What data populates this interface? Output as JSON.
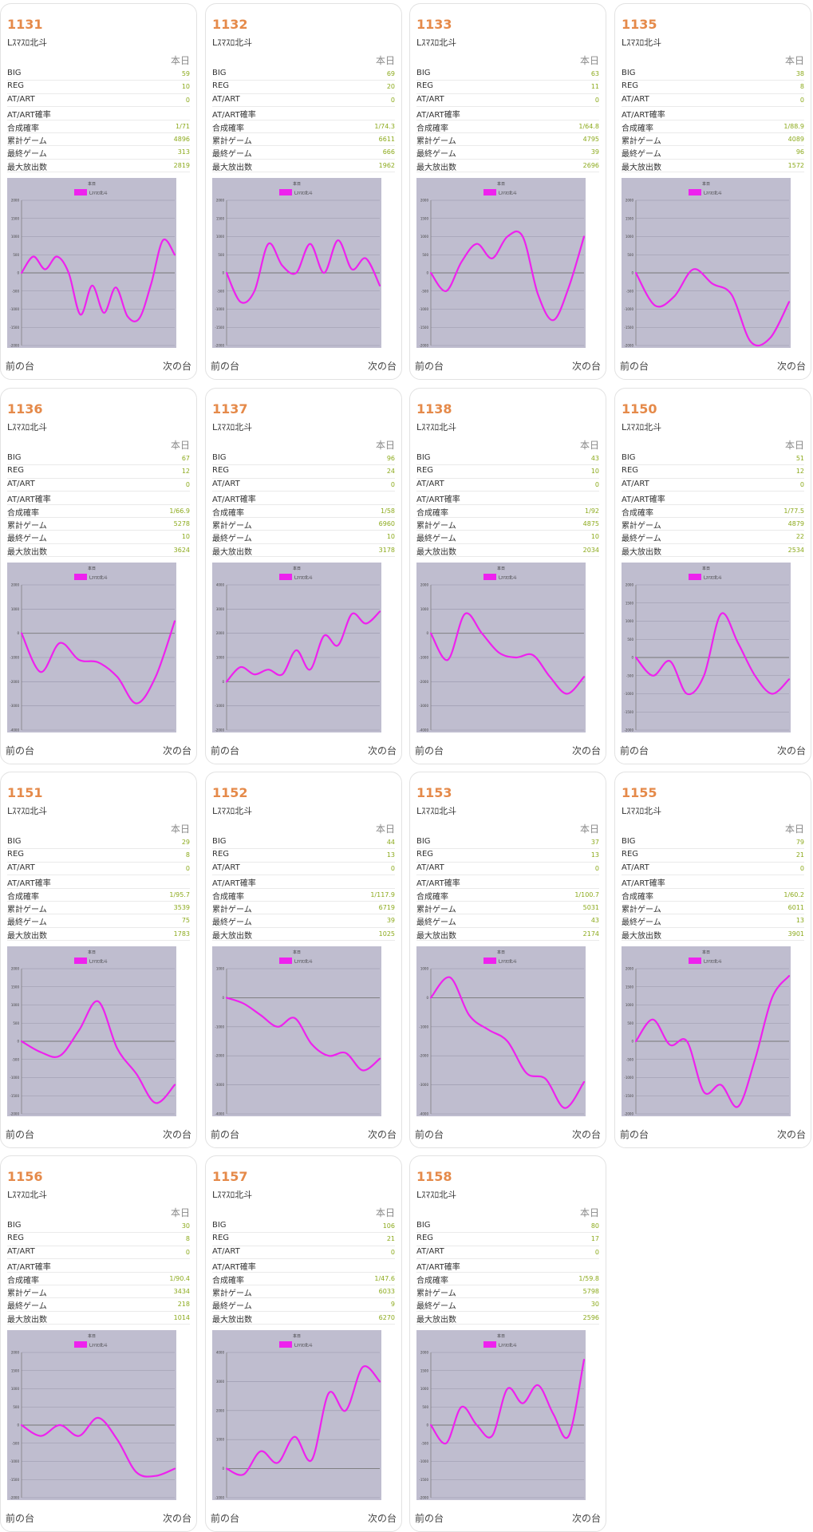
{
  "labels": {
    "today": "本日",
    "prev": "前の台",
    "next": "次の台",
    "rows": [
      "BIG",
      "REG",
      "AT/ART",
      "AT/ART確率",
      "合成確率",
      "累計ゲーム",
      "最終ゲーム",
      "最大放出数"
    ],
    "legend_title": "本日",
    "legend_series": "Lｽﾏｽﾛ北斗"
  },
  "colors": {
    "accent": "#e58a4a",
    "value": "#8caa1c",
    "line": "#ee22ee",
    "plot_bg": "#bfbdcf"
  },
  "machines": [
    {
      "num": "1131",
      "name": "Lｽﾏｽﾛ北斗",
      "stats": [
        "59",
        "10",
        "0",
        "",
        "1/71",
        "4896",
        "313",
        "2819"
      ]
    },
    {
      "num": "1132",
      "name": "Lｽﾏｽﾛ北斗",
      "stats": [
        "69",
        "20",
        "0",
        "",
        "1/74.3",
        "6611",
        "666",
        "1962"
      ]
    },
    {
      "num": "1133",
      "name": "Lｽﾏｽﾛ北斗",
      "stats": [
        "63",
        "11",
        "0",
        "",
        "1/64.8",
        "4795",
        "39",
        "2696"
      ]
    },
    {
      "num": "1135",
      "name": "Lｽﾏｽﾛ北斗",
      "stats": [
        "38",
        "8",
        "0",
        "",
        "1/88.9",
        "4089",
        "96",
        "1572"
      ]
    },
    {
      "num": "1136",
      "name": "Lｽﾏｽﾛ北斗",
      "stats": [
        "67",
        "12",
        "0",
        "",
        "1/66.9",
        "5278",
        "10",
        "3624"
      ]
    },
    {
      "num": "1137",
      "name": "Lｽﾏｽﾛ北斗",
      "stats": [
        "96",
        "24",
        "0",
        "",
        "1/58",
        "6960",
        "10",
        "3178"
      ]
    },
    {
      "num": "1138",
      "name": "Lｽﾏｽﾛ北斗",
      "stats": [
        "43",
        "10",
        "0",
        "",
        "1/92",
        "4875",
        "10",
        "2034"
      ]
    },
    {
      "num": "1150",
      "name": "Lｽﾏｽﾛ北斗",
      "stats": [
        "51",
        "12",
        "0",
        "",
        "1/77.5",
        "4879",
        "22",
        "2534"
      ]
    },
    {
      "num": "1151",
      "name": "Lｽﾏｽﾛ北斗",
      "stats": [
        "29",
        "8",
        "0",
        "",
        "1/95.7",
        "3539",
        "75",
        "1783"
      ]
    },
    {
      "num": "1152",
      "name": "Lｽﾏｽﾛ北斗",
      "stats": [
        "44",
        "13",
        "0",
        "",
        "1/117.9",
        "6719",
        "39",
        "1025"
      ]
    },
    {
      "num": "1153",
      "name": "Lｽﾏｽﾛ北斗",
      "stats": [
        "37",
        "13",
        "0",
        "",
        "1/100.7",
        "5031",
        "43",
        "2174"
      ]
    },
    {
      "num": "1155",
      "name": "Lｽﾏｽﾛ北斗",
      "stats": [
        "79",
        "21",
        "0",
        "",
        "1/60.2",
        "6011",
        "13",
        "3901"
      ]
    },
    {
      "num": "1156",
      "name": "Lｽﾏｽﾛ北斗",
      "stats": [
        "30",
        "8",
        "0",
        "",
        "1/90.4",
        "3434",
        "218",
        "1014"
      ]
    },
    {
      "num": "1157",
      "name": "Lｽﾏｽﾛ北斗",
      "stats": [
        "106",
        "21",
        "0",
        "",
        "1/47.6",
        "6033",
        "9",
        "6270"
      ]
    },
    {
      "num": "1158",
      "name": "Lｽﾏｽﾛ北斗",
      "stats": [
        "80",
        "17",
        "0",
        "",
        "1/59.8",
        "5798",
        "30",
        "2596"
      ]
    }
  ],
  "chart_data": [
    {
      "type": "line",
      "ylim": [
        -2000,
        2000
      ],
      "yticks": [
        2000,
        1500,
        1000,
        500,
        0,
        -500,
        -1000,
        -1500,
        -2000
      ],
      "series": [
        {
          "name": "Lｽﾏｽﾛ北斗",
          "values": [
            0,
            450,
            100,
            450,
            0,
            -1150,
            -350,
            -1100,
            -400,
            -1200,
            -1250,
            -300,
            900,
            500
          ]
        }
      ]
    },
    {
      "type": "line",
      "ylim": [
        -2000,
        2000
      ],
      "yticks": [
        2000,
        1500,
        1000,
        500,
        0,
        -500,
        -1000,
        -1500,
        -2000
      ],
      "series": [
        {
          "name": "Lｽﾏｽﾛ北斗",
          "values": [
            0,
            -800,
            -500,
            800,
            200,
            0,
            800,
            0,
            900,
            100,
            400,
            -350
          ]
        }
      ]
    },
    {
      "type": "line",
      "ylim": [
        -2000,
        2000
      ],
      "yticks": [
        2000,
        1500,
        1000,
        500,
        0,
        -500,
        -1000,
        -1500,
        -2000
      ],
      "series": [
        {
          "name": "Lｽﾏｽﾛ北斗",
          "values": [
            0,
            -500,
            300,
            800,
            400,
            1000,
            1000,
            -600,
            -1300,
            -400,
            1000
          ]
        }
      ]
    },
    {
      "type": "line",
      "ylim": [
        -2000,
        2000
      ],
      "yticks": [
        2000,
        1500,
        1000,
        500,
        0,
        -500,
        -1000,
        -1500,
        -2000
      ],
      "series": [
        {
          "name": "Lｽﾏｽﾛ北斗",
          "values": [
            0,
            -900,
            -650,
            100,
            -300,
            -600,
            -1900,
            -1800,
            -800
          ]
        }
      ]
    },
    {
      "type": "line",
      "ylim": [
        -4000,
        2000
      ],
      "yticks": [
        2000,
        1000,
        0,
        -1000,
        -2000,
        -3000,
        -4000
      ],
      "series": [
        {
          "name": "Lｽﾏｽﾛ北斗",
          "values": [
            0,
            -1600,
            -400,
            -1100,
            -1200,
            -1800,
            -2900,
            -1800,
            500
          ]
        }
      ]
    },
    {
      "type": "line",
      "ylim": [
        -2000,
        4000
      ],
      "yticks": [
        4000,
        3000,
        2000,
        1000,
        0,
        -1000,
        -2000
      ],
      "series": [
        {
          "name": "Lｽﾏｽﾛ北斗",
          "values": [
            0,
            600,
            300,
            500,
            300,
            1300,
            500,
            1900,
            1500,
            2800,
            2400,
            2900
          ]
        }
      ]
    },
    {
      "type": "line",
      "ylim": [
        -4000,
        2000
      ],
      "yticks": [
        2000,
        1000,
        0,
        -1000,
        -2000,
        -3000,
        -4000
      ],
      "series": [
        {
          "name": "Lｽﾏｽﾛ北斗",
          "values": [
            0,
            -1100,
            800,
            0,
            -800,
            -1000,
            -900,
            -1800,
            -2500,
            -1800
          ]
        }
      ]
    },
    {
      "type": "line",
      "ylim": [
        -2000,
        2000
      ],
      "yticks": [
        2000,
        1500,
        1000,
        500,
        0,
        -500,
        -1000,
        -1500,
        -2000
      ],
      "series": [
        {
          "name": "Lｽﾏｽﾛ北斗",
          "values": [
            0,
            -500,
            -100,
            -1000,
            -500,
            1200,
            400,
            -500,
            -1000,
            -600
          ]
        }
      ]
    },
    {
      "type": "line",
      "ylim": [
        -2000,
        2000
      ],
      "yticks": [
        2000,
        1500,
        1000,
        500,
        0,
        -500,
        -1000,
        -1500,
        -2000
      ],
      "series": [
        {
          "name": "Lｽﾏｽﾛ北斗",
          "values": [
            0,
            -300,
            -400,
            300,
            1100,
            -200,
            -900,
            -1700,
            -1200
          ]
        }
      ]
    },
    {
      "type": "line",
      "ylim": [
        -4000,
        1000
      ],
      "yticks": [
        1000,
        0,
        -1000,
        -2000,
        -3000,
        -4000
      ],
      "series": [
        {
          "name": "Lｽﾏｽﾛ北斗",
          "values": [
            0,
            -200,
            -600,
            -1000,
            -700,
            -1600,
            -2000,
            -1900,
            -2500,
            -2100
          ]
        }
      ]
    },
    {
      "type": "line",
      "ylim": [
        -4000,
        1000
      ],
      "yticks": [
        1000,
        0,
        -1000,
        -2000,
        -3000,
        -4000
      ],
      "series": [
        {
          "name": "Lｽﾏｽﾛ北斗",
          "values": [
            0,
            700,
            -600,
            -1100,
            -1500,
            -2600,
            -2800,
            -3800,
            -2900
          ]
        }
      ]
    },
    {
      "type": "line",
      "ylim": [
        -2000,
        2000
      ],
      "yticks": [
        2000,
        1500,
        1000,
        500,
        0,
        -500,
        -1000,
        -1500,
        -2000
      ],
      "series": [
        {
          "name": "Lｽﾏｽﾛ北斗",
          "values": [
            0,
            600,
            -100,
            0,
            -1400,
            -1200,
            -1800,
            -500,
            1200,
            1800
          ]
        }
      ]
    },
    {
      "type": "line",
      "ylim": [
        -2000,
        2000
      ],
      "yticks": [
        2000,
        1500,
        1000,
        500,
        0,
        -500,
        -1000,
        -1500,
        -2000
      ],
      "series": [
        {
          "name": "Lｽﾏｽﾛ北斗",
          "values": [
            0,
            -300,
            0,
            -300,
            200,
            -400,
            -1300,
            -1400,
            -1200
          ]
        }
      ]
    },
    {
      "type": "line",
      "ylim": [
        -1000,
        4000
      ],
      "yticks": [
        4000,
        3000,
        2000,
        1000,
        0,
        -1000
      ],
      "series": [
        {
          "name": "Lｽﾏｽﾛ北斗",
          "values": [
            0,
            -200,
            600,
            200,
            1100,
            300,
            2600,
            2000,
            3500,
            3000
          ]
        }
      ]
    },
    {
      "type": "line",
      "ylim": [
        -2000,
        2000
      ],
      "yticks": [
        2000,
        1500,
        1000,
        500,
        0,
        -500,
        -1000,
        -1500,
        -2000
      ],
      "series": [
        {
          "name": "Lｽﾏｽﾛ北斗",
          "values": [
            0,
            -500,
            500,
            0,
            -300,
            1000,
            600,
            1100,
            300,
            -300,
            1800
          ]
        }
      ]
    }
  ]
}
